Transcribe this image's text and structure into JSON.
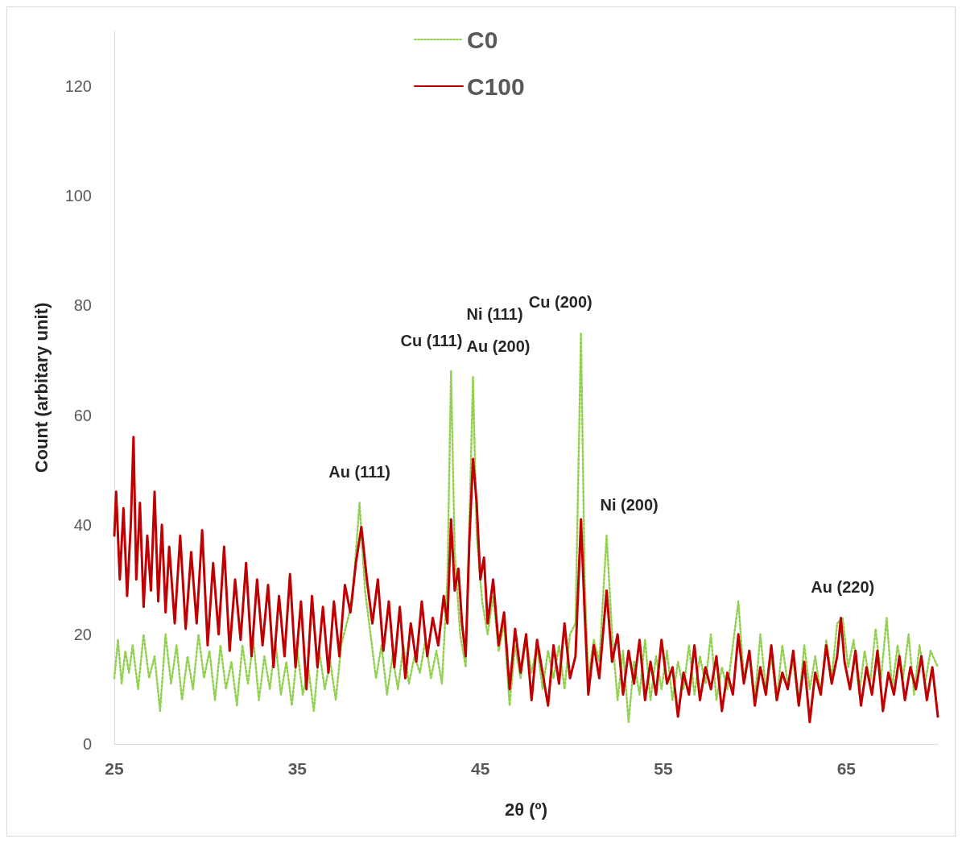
{
  "chart_data": {
    "type": "line",
    "xlabel": "2θ (º)",
    "ylabel": "Count (arbitary unit)",
    "xlim": [
      25,
      70
    ],
    "xticks": [
      25,
      35,
      45,
      55,
      65
    ],
    "ylim": [
      0,
      130
    ],
    "yticks": [
      0,
      20,
      40,
      60,
      80,
      100,
      120
    ],
    "grid": false,
    "legend": "top",
    "marker": "none",
    "series": [
      {
        "name": "C0",
        "color": "#92d050",
        "line_style": "dotted",
        "x": [
          25,
          25.2,
          25.4,
          25.6,
          25.8,
          26,
          26.3,
          26.6,
          26.9,
          27.2,
          27.5,
          27.8,
          28.1,
          28.4,
          28.7,
          29,
          29.3,
          29.6,
          29.9,
          30.2,
          30.5,
          30.8,
          31.1,
          31.4,
          31.7,
          32,
          32.3,
          32.6,
          32.9,
          33.2,
          33.5,
          33.8,
          34.1,
          34.4,
          34.7,
          35,
          35.3,
          35.6,
          35.9,
          36.2,
          36.5,
          36.8,
          37.1,
          37.4,
          37.7,
          38,
          38.4,
          38.7,
          39,
          39.3,
          39.6,
          39.9,
          40.2,
          40.5,
          40.8,
          41.1,
          41.4,
          41.7,
          42,
          42.3,
          42.6,
          42.9,
          43.2,
          43.4,
          43.6,
          43.9,
          44.2,
          44.4,
          44.6,
          44.8,
          45.1,
          45.4,
          45.7,
          46,
          46.3,
          46.6,
          46.9,
          47.2,
          47.5,
          47.8,
          48.1,
          48.4,
          48.7,
          49,
          49.3,
          49.6,
          49.9,
          50.2,
          50.5,
          50.7,
          50.9,
          51.2,
          51.5,
          51.9,
          52.2,
          52.5,
          52.8,
          53.1,
          53.4,
          53.7,
          54,
          54.3,
          54.6,
          54.9,
          55.2,
          55.5,
          55.8,
          56.1,
          56.4,
          56.7,
          57,
          57.3,
          57.6,
          57.9,
          58.2,
          58.5,
          58.8,
          59.1,
          59.4,
          59.7,
          60,
          60.3,
          60.6,
          60.9,
          61.2,
          61.5,
          61.8,
          62.1,
          62.4,
          62.7,
          63,
          63.3,
          63.6,
          63.9,
          64.2,
          64.5,
          64.8,
          65.1,
          65.4,
          65.7,
          66,
          66.3,
          66.6,
          66.9,
          67.2,
          67.5,
          67.8,
          68.1,
          68.4,
          68.7,
          69,
          69.3,
          69.6,
          70
        ],
        "values": [
          12,
          19,
          11,
          17,
          13,
          18,
          10,
          20,
          12,
          16,
          6,
          20,
          11,
          18,
          8,
          16,
          10,
          20,
          12,
          17,
          8,
          18,
          10,
          15,
          7,
          18,
          11,
          19,
          8,
          16,
          10,
          19,
          9,
          15,
          7,
          17,
          9,
          14,
          6,
          17,
          10,
          15,
          8,
          18,
          22,
          26,
          44,
          28,
          20,
          12,
          18,
          9,
          16,
          10,
          18,
          11,
          16,
          13,
          19,
          12,
          17,
          11,
          30,
          68,
          35,
          20,
          14,
          40,
          67,
          38,
          26,
          20,
          27,
          17,
          22,
          7,
          18,
          12,
          19,
          13,
          18,
          10,
          17,
          12,
          18,
          10,
          20,
          22,
          75,
          30,
          12,
          19,
          15,
          38,
          20,
          8,
          17,
          4,
          15,
          9,
          19,
          8,
          16,
          10,
          17,
          8,
          15,
          10,
          18,
          9,
          16,
          11,
          20,
          8,
          14,
          10,
          18,
          26,
          12,
          17,
          8,
          20,
          10,
          16,
          8,
          18,
          11,
          15,
          7,
          18,
          10,
          16,
          9,
          19,
          12,
          22,
          23,
          14,
          19,
          9,
          17,
          11,
          21,
          12,
          23,
          10,
          18,
          12,
          20,
          9,
          18,
          11,
          17,
          14
        ]
      },
      {
        "name": "C100",
        "color": "#c00000",
        "line_style": "solid",
        "x": [
          25,
          25.1,
          25.3,
          25.5,
          25.7,
          25.9,
          26.05,
          26.2,
          26.4,
          26.6,
          26.8,
          27,
          27.2,
          27.4,
          27.6,
          27.8,
          28,
          28.3,
          28.6,
          28.9,
          29.2,
          29.5,
          29.8,
          30.1,
          30.4,
          30.7,
          31,
          31.3,
          31.6,
          31.9,
          32.2,
          32.5,
          32.8,
          33.1,
          33.4,
          33.7,
          34,
          34.3,
          34.6,
          34.9,
          35.2,
          35.5,
          35.8,
          36.1,
          36.4,
          36.7,
          37,
          37.3,
          37.6,
          37.9,
          38.2,
          38.5,
          38.8,
          39.1,
          39.4,
          39.7,
          40,
          40.3,
          40.6,
          40.9,
          41.2,
          41.5,
          41.8,
          42.1,
          42.4,
          42.7,
          43,
          43.2,
          43.4,
          43.6,
          43.8,
          44,
          44.2,
          44.4,
          44.6,
          44.8,
          45,
          45.2,
          45.4,
          45.7,
          46,
          46.3,
          46.6,
          46.9,
          47.2,
          47.5,
          47.8,
          48.1,
          48.4,
          48.7,
          49,
          49.3,
          49.6,
          49.9,
          50.2,
          50.5,
          50.7,
          50.9,
          51.2,
          51.5,
          51.9,
          52.2,
          52.5,
          52.8,
          53.1,
          53.4,
          53.7,
          54,
          54.3,
          54.6,
          54.9,
          55.2,
          55.5,
          55.8,
          56.1,
          56.4,
          56.7,
          57,
          57.3,
          57.6,
          57.9,
          58.2,
          58.5,
          58.8,
          59.1,
          59.4,
          59.7,
          60,
          60.3,
          60.6,
          60.9,
          61.2,
          61.5,
          61.8,
          62.1,
          62.4,
          62.7,
          63,
          63.3,
          63.6,
          63.9,
          64.2,
          64.5,
          64.7,
          64.9,
          65.2,
          65.5,
          65.8,
          66.1,
          66.4,
          66.7,
          67,
          67.3,
          67.6,
          67.9,
          68.2,
          68.5,
          68.8,
          69.1,
          69.4,
          69.7,
          70
        ],
        "values": [
          38,
          46,
          30,
          43,
          27,
          40,
          56,
          30,
          44,
          25,
          38,
          28,
          46,
          26,
          40,
          24,
          36,
          22,
          38,
          21,
          35,
          22,
          39,
          18,
          33,
          20,
          36,
          17,
          30,
          19,
          33,
          16,
          30,
          18,
          29,
          14,
          27,
          16,
          31,
          14,
          26,
          10,
          27,
          14,
          25,
          13,
          26,
          16,
          29,
          24,
          33,
          39.6,
          30,
          22,
          30,
          17,
          26,
          14,
          25,
          12,
          22,
          15,
          26,
          16,
          23,
          18,
          27,
          22,
          41,
          28,
          32,
          22,
          16,
          37,
          52,
          44,
          30,
          34,
          22,
          30,
          18,
          24,
          10,
          21,
          13,
          20,
          8,
          19,
          13,
          7,
          18,
          11,
          22,
          12,
          16,
          41,
          24,
          9,
          18,
          12,
          28,
          15,
          20,
          9,
          17,
          11,
          19,
          8,
          15,
          9,
          19,
          11,
          14,
          5,
          13,
          9,
          18,
          8,
          14,
          10,
          16,
          6,
          13,
          9,
          20,
          11,
          17,
          7,
          14,
          9,
          18,
          8,
          13,
          10,
          17,
          7,
          15,
          4,
          13,
          9,
          18,
          11,
          16,
          23,
          15,
          10,
          17,
          7,
          14,
          9,
          17,
          6,
          13,
          9,
          16,
          8,
          14,
          10,
          16,
          8,
          14,
          5
        ]
      }
    ],
    "annotations": [
      {
        "text": "Au (111)",
        "x": 38.4,
        "y": 44
      },
      {
        "text": "Cu (111)",
        "x": 43.4,
        "y": 68
      },
      {
        "text": "Ni (111)\nAu (200)",
        "x": 44.6,
        "y": 67
      },
      {
        "text": "Cu (200)",
        "x": 50.5,
        "y": 75
      },
      {
        "text": "Ni (200)",
        "x": 51.9,
        "y": 38
      },
      {
        "text": "Au (220)",
        "x": 64.8,
        "y": 23
      }
    ]
  }
}
